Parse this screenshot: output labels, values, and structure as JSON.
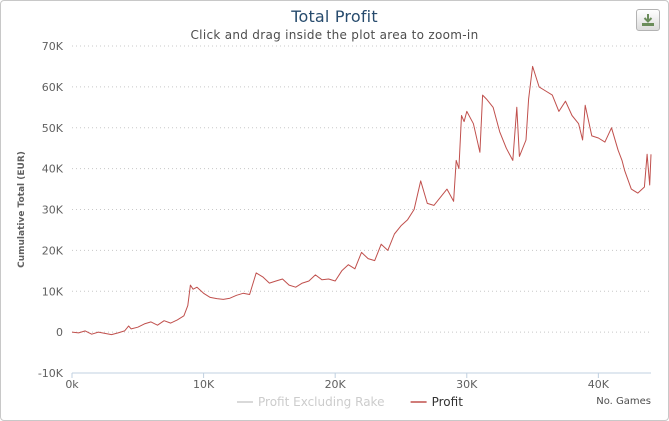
{
  "chart_data": {
    "type": "line",
    "title": "Total Profit",
    "subtitle": "Click and drag inside the plot area to zoom-in",
    "ylabel": "Cumulative Total (EUR)",
    "xlabel": "No. Games",
    "xlim": [
      0,
      44000
    ],
    "ylim": [
      -10000,
      70000
    ],
    "x_ticks": [
      0,
      10000,
      20000,
      30000,
      40000
    ],
    "x_tick_labels": [
      "0k",
      "10K",
      "20K",
      "30K",
      "40K"
    ],
    "y_ticks": [
      -10000,
      0,
      10000,
      20000,
      30000,
      40000,
      50000,
      60000,
      70000
    ],
    "y_tick_labels": [
      "-10K",
      "0",
      "10K",
      "20K",
      "30K",
      "40K",
      "50K",
      "60K",
      "70K"
    ],
    "grid": "horizontal dotted",
    "legend_position": "bottom",
    "series": [
      {
        "name": "Profit Excluding Rake",
        "color": "#d0d0d0",
        "visible": false,
        "x": [],
        "y": []
      },
      {
        "name": "Profit",
        "color": "#c0504d",
        "visible": true,
        "x": [
          0,
          500,
          1000,
          1500,
          2000,
          2500,
          3000,
          3500,
          4000,
          4300,
          4500,
          5000,
          5500,
          6000,
          6500,
          7000,
          7500,
          8000,
          8500,
          8800,
          9000,
          9200,
          9500,
          10000,
          10500,
          11000,
          11500,
          12000,
          12500,
          13000,
          13500,
          14000,
          14500,
          15000,
          15500,
          16000,
          16500,
          17000,
          17500,
          18000,
          18500,
          19000,
          19500,
          20000,
          20500,
          21000,
          21500,
          22000,
          22500,
          23000,
          23500,
          24000,
          24500,
          25000,
          25500,
          26000,
          26500,
          27000,
          27500,
          28000,
          28500,
          29000,
          29200,
          29400,
          29600,
          29800,
          30000,
          30500,
          31000,
          31200,
          31500,
          32000,
          32500,
          33000,
          33500,
          33800,
          34000,
          34500,
          34700,
          35000,
          35500,
          36000,
          36500,
          37000,
          37500,
          38000,
          38500,
          38800,
          39000,
          39500,
          40000,
          40500,
          41000,
          41500,
          41800,
          42000,
          42500,
          43000,
          43500,
          43700,
          43900,
          44000
        ],
        "y": [
          0,
          -200,
          300,
          -500,
          0,
          -300,
          -600,
          -200,
          300,
          1500,
          800,
          1200,
          2000,
          2500,
          1700,
          2800,
          2200,
          3000,
          4000,
          6500,
          11500,
          10500,
          11000,
          9500,
          8500,
          8200,
          8000,
          8300,
          9000,
          9500,
          9200,
          14500,
          13500,
          12000,
          12500,
          13000,
          11500,
          11000,
          12000,
          12500,
          14000,
          12800,
          13000,
          12500,
          15000,
          16500,
          15500,
          19500,
          18000,
          17500,
          21500,
          20000,
          24000,
          26000,
          27500,
          30000,
          37000,
          31500,
          31000,
          33000,
          35000,
          32000,
          42000,
          40000,
          53000,
          51500,
          54000,
          51000,
          44000,
          58000,
          57000,
          55000,
          49000,
          45000,
          42000,
          55000,
          43000,
          47000,
          57000,
          65000,
          60000,
          59000,
          58000,
          54000,
          56500,
          53000,
          51000,
          47000,
          55500,
          48000,
          47500,
          46500,
          50000,
          44500,
          42000,
          39500,
          35000,
          34000,
          35500,
          43500,
          36000,
          43500
        ]
      }
    ]
  }
}
